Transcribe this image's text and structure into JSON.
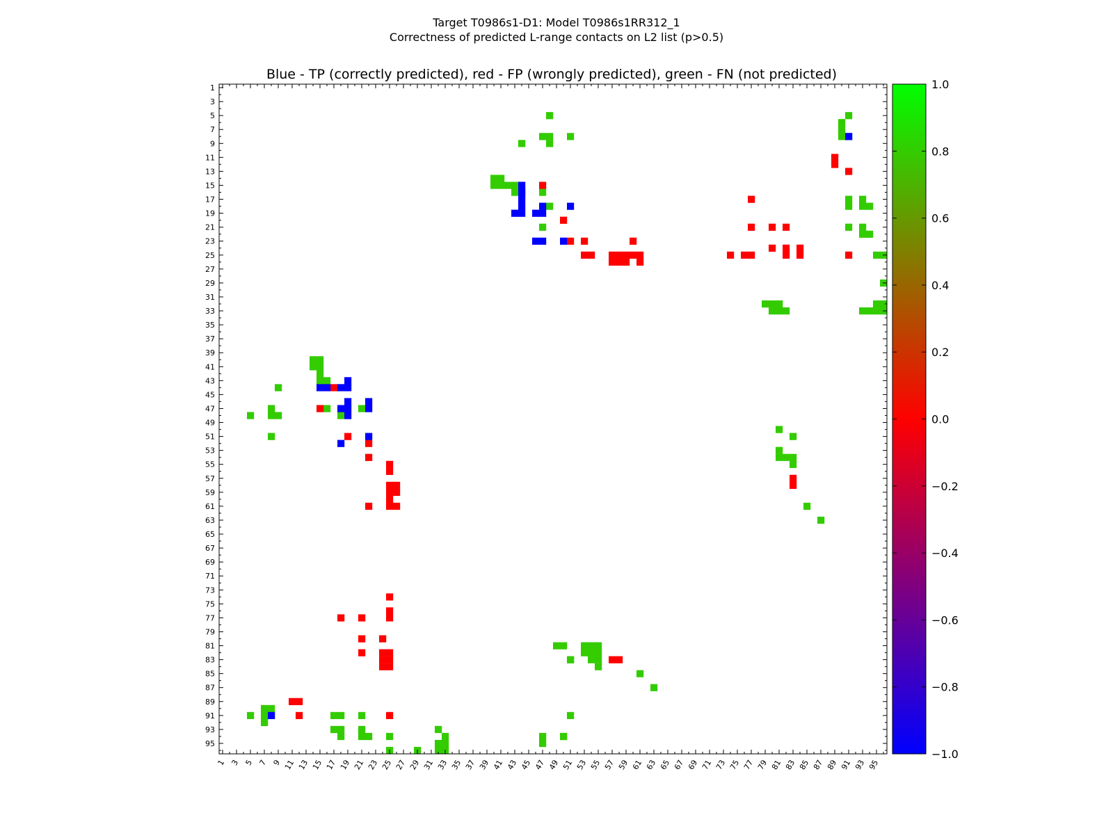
{
  "chart_data": {
    "type": "heatmap",
    "suptitle": [
      "Target T0986s1-D1: Model T0986s1RR312_1",
      "Correctness of predicted L-range contacts on L2 list (p>0.5)"
    ],
    "title": "Blue - TP (correctly predicted), red - FP (wrongly predicted), green - FN (not predicted)",
    "xlabel": "",
    "ylabel": "",
    "n": 96,
    "x_ticks": [
      1,
      3,
      5,
      7,
      9,
      11,
      13,
      15,
      17,
      19,
      21,
      23,
      25,
      27,
      29,
      31,
      33,
      35,
      37,
      39,
      41,
      43,
      45,
      47,
      49,
      51,
      53,
      55,
      57,
      59,
      61,
      63,
      65,
      67,
      69,
      71,
      73,
      75,
      77,
      79,
      81,
      83,
      85,
      87,
      89,
      91,
      93,
      95
    ],
    "y_ticks": [
      1,
      3,
      5,
      7,
      9,
      11,
      13,
      15,
      17,
      19,
      21,
      23,
      25,
      27,
      29,
      31,
      33,
      35,
      37,
      39,
      41,
      43,
      45,
      47,
      49,
      51,
      53,
      55,
      57,
      59,
      61,
      63,
      65,
      67,
      69,
      71,
      73,
      75,
      77,
      79,
      81,
      83,
      85,
      87,
      89,
      91,
      93,
      95
    ],
    "colorbar": {
      "vmin": -1.0,
      "vmax": 1.0,
      "colors": [
        "#0000ff",
        "#ff0000",
        "#00ff00"
      ],
      "ticks": [
        "1.0",
        "0.8",
        "0.6",
        "0.4",
        "0.2",
        "0.0",
        "−0.2",
        "−0.4",
        "−0.6",
        "−0.8",
        "−1.0"
      ]
    },
    "legend": {
      "TP": {
        "value": -1,
        "color": "#0000ff"
      },
      "FP": {
        "value": 0,
        "color": "#ff0000"
      },
      "FN": {
        "value": 0.8,
        "color": "#33cc00"
      }
    },
    "cells": {
      "TP": [
        [
          15,
          44
        ],
        [
          16,
          44
        ],
        [
          17,
          44
        ],
        [
          18,
          44
        ],
        [
          19,
          43
        ],
        [
          19,
          44
        ],
        [
          18,
          47
        ],
        [
          19,
          46
        ],
        [
          19,
          47
        ],
        [
          18,
          51
        ],
        [
          23,
          46
        ],
        [
          23,
          47
        ],
        [
          23,
          50
        ],
        [
          8,
          91
        ],
        [
          44,
          15
        ],
        [
          44,
          16
        ],
        [
          44,
          18
        ],
        [
          44,
          19
        ],
        [
          43,
          19
        ],
        [
          47,
          18
        ],
        [
          47,
          19
        ],
        [
          48,
          19
        ],
        [
          46,
          19
        ],
        [
          46,
          22
        ],
        [
          47,
          22
        ],
        [
          51,
          22
        ],
        [
          52,
          18
        ],
        [
          91,
          8
        ]
      ],
      "FP": [
        [
          15,
          47
        ],
        [
          16,
          44
        ],
        [
          20,
          50
        ],
        [
          23,
          51
        ],
        [
          23,
          53
        ],
        [
          23,
          60
        ],
        [
          17,
          77
        ],
        [
          21,
          77
        ],
        [
          21,
          80
        ],
        [
          21,
          82
        ],
        [
          24,
          80
        ],
        [
          24,
          82
        ],
        [
          25,
          82
        ],
        [
          24,
          84
        ],
        [
          25,
          84
        ],
        [
          25,
          53
        ],
        [
          25,
          54
        ],
        [
          25,
          57
        ],
        [
          25,
          58
        ],
        [
          25,
          59
        ],
        [
          25,
          60
        ],
        [
          25,
          61
        ],
        [
          26,
          57
        ],
        [
          26,
          58
        ],
        [
          26,
          59
        ],
        [
          26,
          61
        ],
        [
          25,
          74
        ],
        [
          25,
          76
        ],
        [
          25,
          77
        ],
        [
          25,
          91
        ],
        [
          11,
          89
        ],
        [
          12,
          89
        ],
        [
          13,
          91
        ],
        [
          44,
          17
        ],
        [
          47,
          15
        ],
        [
          51,
          19
        ],
        [
          52,
          22
        ],
        [
          55,
          25
        ],
        [
          56,
          25
        ],
        [
          54,
          22
        ],
        [
          59,
          25
        ],
        [
          60,
          25
        ],
        [
          59,
          26
        ],
        [
          58,
          25
        ],
        [
          58,
          26
        ],
        [
          61,
          25
        ],
        [
          61,
          26
        ],
        [
          61,
          22
        ],
        [
          74,
          25
        ],
        [
          76,
          25
        ],
        [
          77,
          25
        ],
        [
          77,
          21
        ],
        [
          77,
          18
        ],
        [
          80,
          21
        ],
        [
          80,
          24
        ],
        [
          82,
          21
        ],
        [
          82,
          24
        ],
        [
          82,
          25
        ],
        [
          83,
          24
        ],
        [
          83,
          25
        ],
        [
          84,
          24
        ],
        [
          84,
          25
        ],
        [
          89,
          11
        ],
        [
          89,
          12
        ],
        [
          91,
          12
        ],
        [
          91,
          25
        ],
        [
          83,
          57
        ],
        [
          83,
          58
        ],
        [
          57,
          83
        ],
        [
          58,
          83
        ]
      ],
      "FN": [
        [
          5,
          48
        ],
        [
          8,
          47
        ],
        [
          8,
          48
        ],
        [
          9,
          48
        ],
        [
          8,
          51
        ],
        [
          9,
          44
        ],
        [
          14,
          40
        ],
        [
          14,
          41
        ],
        [
          15,
          40
        ],
        [
          15,
          41
        ],
        [
          15,
          42
        ],
        [
          15,
          43
        ],
        [
          16,
          43
        ],
        [
          16,
          47
        ],
        [
          18,
          48
        ],
        [
          21,
          47
        ],
        [
          5,
          91
        ],
        [
          7,
          90
        ],
        [
          8,
          90
        ],
        [
          8,
          91
        ],
        [
          6,
          90
        ],
        [
          17,
          91
        ],
        [
          18,
          91
        ],
        [
          17,
          93
        ],
        [
          18,
          93
        ],
        [
          18,
          94
        ],
        [
          21,
          91
        ],
        [
          21,
          93
        ],
        [
          22,
          93
        ],
        [
          22,
          94
        ],
        [
          25,
          95
        ],
        [
          25,
          96
        ],
        [
          29,
          96
        ],
        [
          32,
          81
        ],
        [
          33,
          81
        ],
        [
          33,
          82
        ],
        [
          32,
          95
        ],
        [
          32,
          96
        ],
        [
          33,
          96
        ],
        [
          33,
          93
        ],
        [
          33,
          94
        ],
        [
          33,
          95
        ],
        [
          32,
          79
        ],
        [
          32,
          80
        ],
        [
          33,
          80
        ],
        [
          32,
          81
        ],
        [
          40,
          14
        ],
        [
          41,
          14
        ],
        [
          40,
          15
        ],
        [
          41,
          15
        ],
        [
          42,
          15
        ],
        [
          43,
          15
        ],
        [
          43,
          16
        ],
        [
          47,
          16
        ],
        [
          48,
          18
        ],
        [
          47,
          21
        ],
        [
          48,
          5
        ],
        [
          47,
          8
        ],
        [
          48,
          8
        ],
        [
          48,
          9
        ],
        [
          51,
          8
        ],
        [
          44,
          9
        ],
        [
          81,
          53
        ],
        [
          81,
          54
        ],
        [
          82,
          53
        ],
        [
          82,
          54
        ],
        [
          81,
          55
        ],
        [
          83,
          51
        ],
        [
          84,
          55
        ],
        [
          85,
          61
        ],
        [
          87,
          63
        ],
        [
          81,
          50
        ],
        [
          82,
          55
        ],
        [
          83,
          55
        ],
        [
          83,
          54
        ],
        [
          50,
          81
        ],
        [
          51,
          83
        ],
        [
          53,
          81
        ],
        [
          54,
          81
        ],
        [
          54,
          82
        ],
        [
          54,
          83
        ],
        [
          55,
          83
        ],
        [
          61,
          85
        ],
        [
          63,
          87
        ],
        [
          91,
          5
        ],
        [
          91,
          7
        ],
        [
          91,
          8
        ],
        [
          92,
          7
        ],
        [
          90,
          7
        ],
        [
          90,
          8
        ],
        [
          91,
          17
        ],
        [
          91,
          18
        ],
        [
          93,
          17
        ],
        [
          93,
          18
        ],
        [
          94,
          18
        ],
        [
          91,
          21
        ],
        [
          93,
          21
        ],
        [
          94,
          21
        ],
        [
          94,
          22
        ],
        [
          94,
          25
        ],
        [
          96,
          25
        ],
        [
          96,
          29
        ],
        [
          96,
          32
        ],
        [
          96,
          33
        ],
        [
          94,
          33
        ],
        [
          94,
          47
        ],
        [
          94,
          50
        ],
        [
          91,
          51
        ],
        [
          81,
          49
        ],
        [
          83,
          51
        ],
        [
          93,
          32
        ],
        [
          95,
          32
        ],
        [
          95,
          33
        ],
        [
          95,
          47
        ],
        [
          94,
          50
        ]
      ]
    }
  }
}
